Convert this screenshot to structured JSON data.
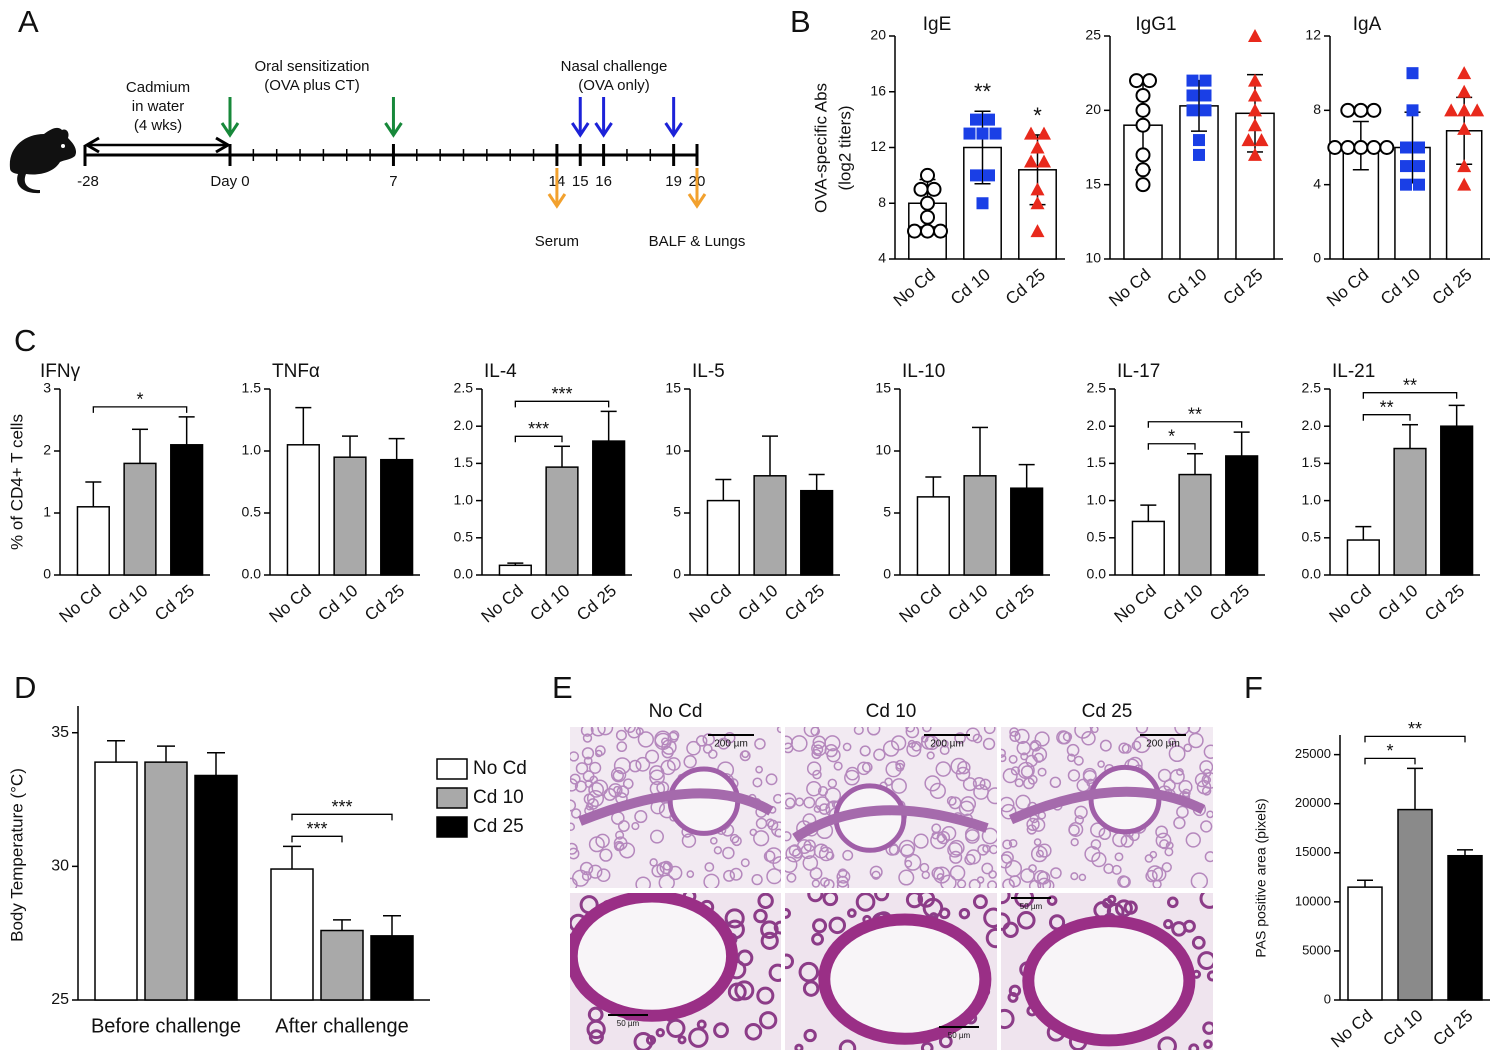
{
  "panel_labels": [
    "A",
    "B",
    "C",
    "D",
    "E",
    "F"
  ],
  "timeline": {
    "cadmium_label": [
      "Cadmium",
      "in water",
      "(4 wks)"
    ],
    "sensitization_label": [
      "Oral sensitization",
      "(OVA plus CT)"
    ],
    "challenge_label": [
      "Nasal challenge",
      "(OVA only)"
    ],
    "start_label": "-28",
    "xlim": [
      0,
      20
    ],
    "xticks": [
      {
        "value": 0,
        "label": "Day 0"
      },
      7,
      14,
      15,
      16,
      19,
      20
    ],
    "sensitization_days": [
      0,
      7
    ],
    "challenge_days": [
      15,
      16,
      19
    ],
    "sampling_days": [
      14,
      20
    ],
    "sampling_labels": [
      "Serum",
      "BALF & Lungs"
    ],
    "colors": {
      "sensitization": "#17883a",
      "challenge": "#1c22d8",
      "sampling": "#f2a12e"
    }
  },
  "chart_data": [
    {
      "type": "bar",
      "title": "IgE",
      "ylabel": [
        "OVA-specific Abs",
        "(log2 titers)"
      ],
      "categories": [
        "No Cd",
        "Cd 10",
        "Cd 25"
      ],
      "values": [
        8.0,
        12.0,
        10.4
      ],
      "errors": [
        1.7,
        2.6,
        2.5
      ],
      "points": [
        [
          10,
          9,
          9,
          8,
          7,
          6,
          6,
          6
        ],
        [
          14,
          14,
          13,
          13,
          13,
          10,
          10,
          8
        ],
        [
          13,
          13,
          12,
          11,
          11,
          9,
          8,
          6
        ]
      ],
      "point_colors": [
        "#000000",
        "#1a3fe6",
        "#e8291c"
      ],
      "markers": [
        "circle-open",
        "square",
        "triangle"
      ],
      "bar_color": "#ffffff",
      "annotations": [
        {
          "label": "**",
          "category": 1
        },
        {
          "label": "*",
          "category": 2
        }
      ],
      "ylim": [
        4,
        20
      ],
      "yticks": [
        4,
        8,
        12,
        16,
        20
      ]
    },
    {
      "type": "bar",
      "title": "IgG1",
      "categories": [
        "No Cd",
        "Cd 10",
        "Cd 25"
      ],
      "values": [
        19.0,
        20.3,
        19.8
      ],
      "errors": [
        3.0,
        1.7,
        2.6
      ],
      "points": [
        [
          22,
          22,
          21,
          20,
          19,
          17,
          16,
          15
        ],
        [
          22,
          22,
          21,
          21,
          20,
          20,
          18,
          17
        ],
        [
          25,
          22,
          21,
          20,
          19,
          18,
          18,
          17
        ]
      ],
      "point_colors": [
        "#000000",
        "#1a3fe6",
        "#e8291c"
      ],
      "markers": [
        "circle-open",
        "square",
        "triangle"
      ],
      "bar_color": "#ffffff",
      "ylim": [
        10,
        25
      ],
      "yticks": [
        10,
        15,
        20,
        25
      ]
    },
    {
      "type": "bar",
      "title": "IgA",
      "categories": [
        "No Cd",
        "Cd 10",
        "Cd 25"
      ],
      "values": [
        6.1,
        6.0,
        6.9
      ],
      "errors": [
        1.3,
        1.9,
        1.8
      ],
      "points": [
        [
          8,
          8,
          8,
          6,
          6,
          6,
          6,
          6
        ],
        [
          10,
          8,
          6,
          6,
          5,
          5,
          4,
          4
        ],
        [
          10,
          9,
          8,
          8,
          8,
          7,
          5,
          4
        ]
      ],
      "point_colors": [
        "#000000",
        "#1a3fe6",
        "#e8291c"
      ],
      "markers": [
        "circle-open",
        "square",
        "triangle"
      ],
      "bar_color": "#ffffff",
      "ylim": [
        0,
        12
      ],
      "yticks": [
        0,
        4,
        8,
        12
      ]
    },
    {
      "type": "bar",
      "title": "IFNγ",
      "ylabel": "% of CD4+ T cells",
      "categories": [
        "No Cd",
        "Cd 10",
        "Cd 25"
      ],
      "values": [
        1.1,
        1.8,
        2.1
      ],
      "errors": [
        0.4,
        0.55,
        0.45
      ],
      "colors": [
        "#ffffff",
        "#a9a9a9",
        "#000000"
      ],
      "significance": [
        {
          "label": "*",
          "from": 0,
          "to": 2
        }
      ],
      "ylim": [
        0,
        3
      ],
      "yticks": [
        0,
        1,
        2,
        3
      ]
    },
    {
      "type": "bar",
      "title": "TNFα",
      "categories": [
        "No Cd",
        "Cd 10",
        "Cd 25"
      ],
      "values": [
        1.05,
        0.95,
        0.93
      ],
      "errors": [
        0.3,
        0.17,
        0.17
      ],
      "colors": [
        "#ffffff",
        "#a9a9a9",
        "#000000"
      ],
      "ylim": [
        0,
        1.5
      ],
      "yticks": [
        {
          "value": 0,
          "label": "0.0"
        },
        0.5,
        {
          "value": 1,
          "label": "1.0"
        },
        1.5
      ]
    },
    {
      "type": "bar",
      "title": "IL-4",
      "categories": [
        "No Cd",
        "Cd 10",
        "Cd 25"
      ],
      "values": [
        0.13,
        1.45,
        1.8
      ],
      "errors": [
        0.03,
        0.28,
        0.4
      ],
      "colors": [
        "#ffffff",
        "#a9a9a9",
        "#000000"
      ],
      "significance": [
        {
          "label": "***",
          "from": 0,
          "to": 1
        },
        {
          "label": "***",
          "from": 0,
          "to": 2
        }
      ],
      "ylim": [
        0,
        2.5
      ],
      "yticks": [
        {
          "value": 0,
          "label": "0.0"
        },
        0.5,
        {
          "value": 1,
          "label": "1.0"
        },
        1.5,
        {
          "value": 2,
          "label": "2.0"
        },
        2.5
      ]
    },
    {
      "type": "bar",
      "title": "IL-5",
      "categories": [
        "No Cd",
        "Cd 10",
        "Cd 25"
      ],
      "values": [
        6.0,
        8.0,
        6.8
      ],
      "errors": [
        1.7,
        3.2,
        1.3
      ],
      "colors": [
        "#ffffff",
        "#a9a9a9",
        "#000000"
      ],
      "ylim": [
        0,
        15
      ],
      "yticks": [
        0,
        5,
        10,
        15
      ]
    },
    {
      "type": "bar",
      "title": "IL-10",
      "categories": [
        "No Cd",
        "Cd 10",
        "Cd 25"
      ],
      "values": [
        6.3,
        8.0,
        7.0
      ],
      "errors": [
        1.6,
        3.9,
        1.9
      ],
      "colors": [
        "#ffffff",
        "#a9a9a9",
        "#000000"
      ],
      "ylim": [
        0,
        15
      ],
      "yticks": [
        0,
        5,
        10,
        15
      ]
    },
    {
      "type": "bar",
      "title": "IL-17",
      "categories": [
        "No Cd",
        "Cd 10",
        "Cd 25"
      ],
      "values": [
        0.72,
        1.35,
        1.6
      ],
      "errors": [
        0.22,
        0.28,
        0.32
      ],
      "colors": [
        "#ffffff",
        "#a9a9a9",
        "#000000"
      ],
      "significance": [
        {
          "label": "*",
          "from": 0,
          "to": 1
        },
        {
          "label": "**",
          "from": 0,
          "to": 2
        }
      ],
      "ylim": [
        0,
        2.5
      ],
      "yticks": [
        {
          "value": 0,
          "label": "0.0"
        },
        0.5,
        {
          "value": 1,
          "label": "1.0"
        },
        1.5,
        {
          "value": 2,
          "label": "2.0"
        },
        2.5
      ]
    },
    {
      "type": "bar",
      "title": "IL-21",
      "categories": [
        "No Cd",
        "Cd 10",
        "Cd 25"
      ],
      "values": [
        0.47,
        1.7,
        2.0
      ],
      "errors": [
        0.18,
        0.32,
        0.28
      ],
      "colors": [
        "#ffffff",
        "#a9a9a9",
        "#000000"
      ],
      "significance": [
        {
          "label": "**",
          "from": 0,
          "to": 1
        },
        {
          "label": "**",
          "from": 0,
          "to": 2
        }
      ],
      "ylim": [
        0,
        2.5
      ],
      "yticks": [
        {
          "value": 0,
          "label": "0.0"
        },
        0.5,
        {
          "value": 1,
          "label": "1.0"
        },
        1.5,
        {
          "value": 2,
          "label": "2.0"
        },
        2.5
      ]
    },
    {
      "type": "grouped_bar",
      "ylabel": "Body Temperature (°C)",
      "categories": [
        "Before challenge",
        "After challenge"
      ],
      "series": [
        {
          "name": "No Cd",
          "color": "#ffffff",
          "values": [
            33.9,
            29.9
          ],
          "errors": [
            0.8,
            0.85
          ]
        },
        {
          "name": "Cd 10",
          "color": "#a9a9a9",
          "values": [
            33.9,
            27.6
          ],
          "errors": [
            0.6,
            0.4
          ]
        },
        {
          "name": "Cd 25",
          "color": "#000000",
          "values": [
            33.4,
            27.4
          ],
          "errors": [
            0.85,
            0.75
          ]
        }
      ],
      "significance": [
        {
          "label": "***",
          "category": 1,
          "from": 0,
          "to": 1
        },
        {
          "label": "***",
          "category": 1,
          "from": 0,
          "to": 2
        }
      ],
      "ylim": [
        25,
        36
      ],
      "yticks": [
        25,
        30,
        35
      ]
    },
    {
      "type": "bar",
      "ylabel": "PAS positive area (pixels)",
      "categories": [
        "No Cd",
        "Cd 10",
        "Cd 25"
      ],
      "values": [
        11500,
        19400,
        14700
      ],
      "errors": [
        700,
        4200,
        600
      ],
      "colors": [
        "#ffffff",
        "#8a8a8a",
        "#000000"
      ],
      "significance": [
        {
          "label": "*",
          "from": 0,
          "to": 1
        },
        {
          "label": "**",
          "from": 0,
          "to": 2
        }
      ],
      "ylim": [
        0,
        27000
      ],
      "yticks": [
        0,
        5000,
        10000,
        15000,
        20000,
        25000
      ]
    }
  ],
  "histology": {
    "columns": [
      "No Cd",
      "Cd 10",
      "Cd 25"
    ],
    "scale_bars": [
      "200 µm",
      "200 µm",
      "200 µm",
      "50 µm",
      "50 µm",
      "50 µm"
    ]
  }
}
